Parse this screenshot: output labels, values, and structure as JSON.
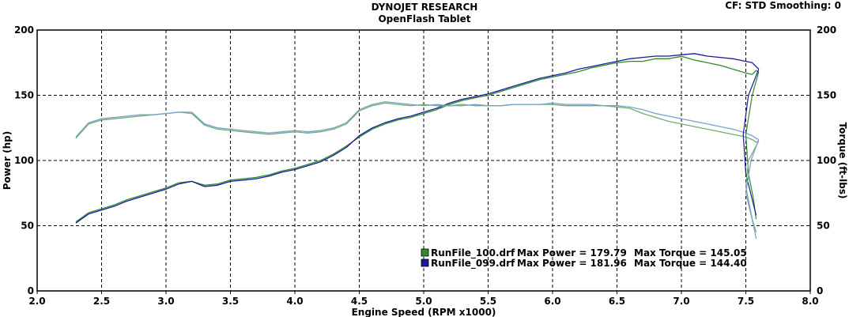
{
  "header": {
    "title": "DYNOJET RESEARCH",
    "subtitle": "OpenFlash Tablet",
    "cf_info": "CF: STD  Smoothing: 0"
  },
  "chart_data": {
    "type": "line",
    "title": "DYNOJET RESEARCH",
    "subtitle": "OpenFlash Tablet",
    "xlabel": "Engine Speed (RPM x1000)",
    "ylabel_left": "Power (hp)",
    "ylabel_right": "Torque (ft-lbs)",
    "xlim": [
      2.0,
      8.0
    ],
    "ylim": [
      0,
      200
    ],
    "xticks": [
      "2.0",
      "2.5",
      "3.0",
      "3.5",
      "4.0",
      "4.5",
      "5.0",
      "5.5",
      "6.0",
      "6.5",
      "7.0",
      "7.5",
      "8.0"
    ],
    "yticks": [
      "0",
      "50",
      "100",
      "150",
      "200"
    ],
    "grid": true,
    "legend_position": "bottom-center",
    "legend": [
      {
        "file": "RunFile_100.drf",
        "power_label": "Max Power = 179.79",
        "torque_label": "Max Torque = 145.05",
        "color": "#2e8b2e"
      },
      {
        "file": "RunFile_099.drf",
        "power_label": "Max Power = 181.96",
        "torque_label": "Max Torque = 144.40",
        "color": "#1a1a9e"
      }
    ],
    "series": [
      {
        "name": "RunFile_100.drf",
        "kind": "power",
        "color": "#2e8b2e",
        "x": [
          2.3,
          2.4,
          2.5,
          2.6,
          2.7,
          2.8,
          2.9,
          3.0,
          3.1,
          3.2,
          3.3,
          3.4,
          3.5,
          3.6,
          3.7,
          3.8,
          3.9,
          4.0,
          4.1,
          4.2,
          4.3,
          4.4,
          4.5,
          4.6,
          4.7,
          4.8,
          4.9,
          5.0,
          5.1,
          5.2,
          5.3,
          5.4,
          5.5,
          5.6,
          5.7,
          5.8,
          5.9,
          6.0,
          6.1,
          6.2,
          6.3,
          6.4,
          6.5,
          6.6,
          6.7,
          6.8,
          6.9,
          7.0,
          7.1,
          7.2,
          7.3,
          7.4,
          7.5,
          7.55,
          7.58,
          7.6
        ],
        "y": [
          53,
          60,
          63,
          66,
          70,
          73,
          76,
          79,
          83,
          84,
          81,
          82,
          85,
          86,
          87,
          89,
          92,
          94,
          97,
          100,
          105,
          111,
          118,
          124,
          128,
          131,
          133,
          136,
          139,
          143,
          146,
          148,
          150,
          153,
          156,
          159,
          162,
          164,
          166,
          168,
          171,
          173,
          175,
          176,
          176,
          178,
          178,
          179.79,
          177,
          175,
          173,
          170,
          167,
          166,
          169,
          168
        ]
      },
      {
        "name": "RunFile_099.drf",
        "kind": "power",
        "color": "#1a1a9e",
        "x": [
          2.3,
          2.4,
          2.5,
          2.6,
          2.7,
          2.8,
          2.9,
          3.0,
          3.1,
          3.2,
          3.3,
          3.4,
          3.5,
          3.6,
          3.7,
          3.8,
          3.9,
          4.0,
          4.1,
          4.2,
          4.3,
          4.4,
          4.5,
          4.6,
          4.7,
          4.8,
          4.9,
          5.0,
          5.1,
          5.2,
          5.3,
          5.4,
          5.5,
          5.6,
          5.7,
          5.8,
          5.9,
          6.0,
          6.1,
          6.2,
          6.3,
          6.4,
          6.5,
          6.6,
          6.7,
          6.8,
          6.9,
          7.0,
          7.1,
          7.2,
          7.3,
          7.4,
          7.5,
          7.55,
          7.58,
          7.6
        ],
        "y": [
          52,
          59,
          62,
          65,
          69,
          72,
          75,
          78,
          82,
          84,
          80,
          81,
          84,
          85,
          86,
          88,
          91,
          93,
          96,
          99,
          104,
          110,
          119,
          125,
          129,
          132,
          134,
          137,
          140,
          144,
          147,
          149,
          151,
          154,
          157,
          160,
          163,
          165,
          167,
          170,
          172,
          174,
          176,
          178,
          179,
          180,
          180,
          181,
          181.96,
          180,
          179,
          178,
          176,
          175,
          172,
          170
        ]
      },
      {
        "name": "RunFile_100.drf",
        "kind": "torque",
        "color": "#6fae6f",
        "x": [
          2.3,
          2.4,
          2.5,
          2.6,
          2.7,
          2.8,
          2.9,
          3.0,
          3.1,
          3.2,
          3.3,
          3.4,
          3.5,
          3.6,
          3.7,
          3.8,
          3.9,
          4.0,
          4.1,
          4.2,
          4.3,
          4.4,
          4.5,
          4.6,
          4.7,
          4.8,
          4.9,
          5.0,
          5.1,
          5.2,
          5.3,
          5.4,
          5.5,
          5.6,
          5.7,
          5.8,
          5.9,
          6.0,
          6.1,
          6.2,
          6.3,
          6.4,
          6.5,
          6.6,
          6.7,
          6.8,
          6.9,
          7.0,
          7.1,
          7.2,
          7.3,
          7.4,
          7.5,
          7.55,
          7.58,
          7.6
        ],
        "y": [
          117,
          128,
          131,
          132,
          133,
          134,
          135,
          136,
          137,
          136,
          127,
          124,
          123,
          122,
          121,
          120,
          121,
          122,
          121,
          122,
          124,
          128,
          138,
          142,
          144,
          143,
          142,
          143,
          142,
          142,
          143,
          142,
          142,
          142,
          143,
          143,
          143,
          143,
          142,
          142,
          142,
          142,
          141,
          140,
          136,
          133,
          130,
          128,
          126,
          124,
          122,
          120,
          118,
          116,
          114,
          115
        ]
      },
      {
        "name": "RunFile_099.drf",
        "kind": "torque",
        "color": "#7a9ed0",
        "x": [
          2.3,
          2.4,
          2.5,
          2.6,
          2.7,
          2.8,
          2.9,
          3.0,
          3.1,
          3.2,
          3.3,
          3.4,
          3.5,
          3.6,
          3.7,
          3.8,
          3.9,
          4.0,
          4.1,
          4.2,
          4.3,
          4.4,
          4.5,
          4.6,
          4.7,
          4.8,
          4.9,
          5.0,
          5.1,
          5.2,
          5.3,
          5.4,
          5.5,
          5.6,
          5.7,
          5.8,
          5.9,
          6.0,
          6.1,
          6.2,
          6.3,
          6.4,
          6.5,
          6.6,
          6.7,
          6.8,
          6.9,
          7.0,
          7.1,
          7.2,
          7.3,
          7.4,
          7.5,
          7.55,
          7.58,
          7.6
        ],
        "y": [
          118,
          129,
          132,
          133,
          134,
          135,
          135,
          136,
          137,
          137,
          128,
          125,
          124,
          123,
          122,
          121,
          122,
          123,
          122,
          123,
          125,
          129,
          139,
          143,
          145,
          144,
          143,
          142,
          143,
          142,
          142,
          143,
          142,
          142,
          143,
          143,
          143,
          144,
          143,
          143,
          143,
          142,
          142,
          141,
          139,
          136,
          134,
          132,
          130,
          128,
          126,
          124,
          121,
          119,
          117,
          116
        ]
      }
    ],
    "dropdown_traces": [
      {
        "color": "#2e8b2e",
        "points": [
          [
            7.6,
            168
          ],
          [
            7.55,
            150
          ],
          [
            7.5,
            120
          ],
          [
            7.52,
            90
          ],
          [
            7.56,
            70
          ],
          [
            7.58,
            55
          ]
        ]
      },
      {
        "color": "#1a1a9e",
        "points": [
          [
            7.6,
            170
          ],
          [
            7.52,
            150
          ],
          [
            7.48,
            120
          ],
          [
            7.5,
            90
          ],
          [
            7.55,
            70
          ],
          [
            7.58,
            58
          ]
        ]
      },
      {
        "color": "#6fae6f",
        "points": [
          [
            7.6,
            115
          ],
          [
            7.52,
            100
          ],
          [
            7.5,
            80
          ],
          [
            7.55,
            55
          ],
          [
            7.58,
            45
          ]
        ]
      },
      {
        "color": "#7a9ed0",
        "points": [
          [
            7.6,
            116
          ],
          [
            7.54,
            100
          ],
          [
            7.5,
            75
          ],
          [
            7.56,
            50
          ],
          [
            7.58,
            40
          ]
        ]
      }
    ]
  }
}
